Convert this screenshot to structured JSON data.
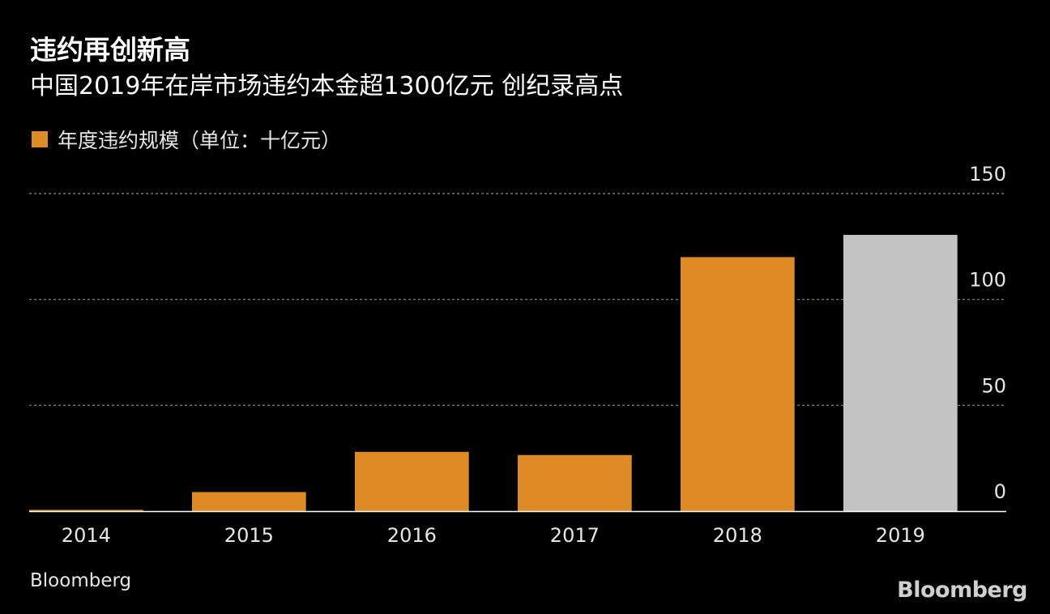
{
  "chart_data": {
    "type": "bar",
    "title": "违约再创新高",
    "subtitle": "中国2019年在岸市场违约本金超1300亿元 创纪录高点",
    "legend": {
      "label": "年度违约规模（单位：十亿元）",
      "color": "#dc8b27",
      "placement": "top-left"
    },
    "categories": [
      "2014",
      "2015",
      "2016",
      "2017",
      "2018",
      "2019"
    ],
    "series": [
      {
        "name": "年度违约规模（单位：十亿元）",
        "values": [
          0.6,
          9.0,
          28.0,
          26.5,
          120.0,
          130.5
        ]
      }
    ],
    "bar_colors": [
      "#dc8b27",
      "#dc8b27",
      "#dc8b27",
      "#dc8b27",
      "#dc8b27",
      "#c3c3c3"
    ],
    "ylim": [
      0,
      150
    ],
    "yticks": [
      0,
      50,
      100,
      150
    ],
    "y_axis_side": "right",
    "grid": true,
    "xlabel": "",
    "ylabel": ""
  },
  "footer": {
    "source": "Bloomberg",
    "logo": "Bloomberg"
  }
}
